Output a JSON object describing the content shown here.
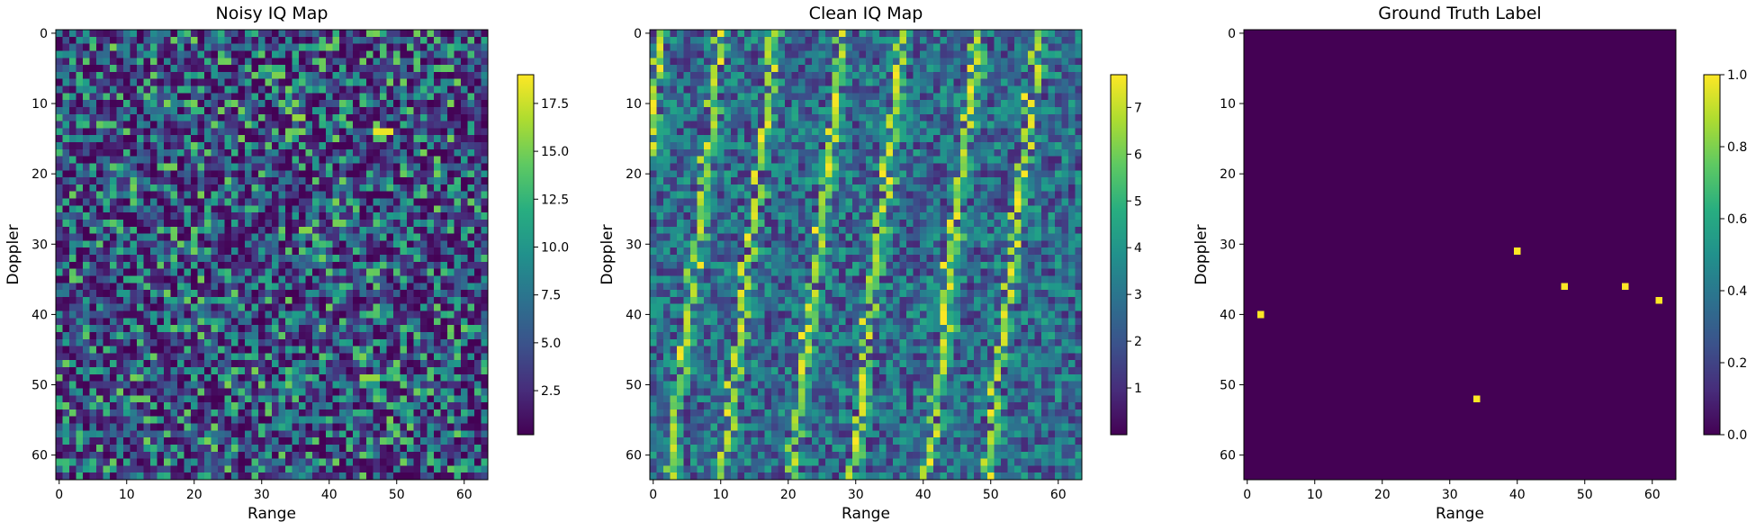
{
  "chart_data": [
    {
      "type": "heatmap",
      "title": "Noisy IQ Map",
      "xlabel": "Range",
      "ylabel": "Doppler",
      "rows": 64,
      "cols": 64,
      "xticks": [
        0,
        10,
        20,
        30,
        40,
        50,
        60
      ],
      "yticks": [
        0,
        10,
        20,
        30,
        40,
        50,
        60
      ],
      "colormap": "viridis",
      "colorbar": {
        "min": 0.2,
        "max": 19.0,
        "ticks": [
          2.5,
          5.0,
          7.5,
          10.0,
          12.5,
          15.0,
          17.5
        ],
        "tick_labels": [
          "2.5",
          "5.0",
          "7.5",
          "10.0",
          "12.5",
          "15.0",
          "17.5"
        ]
      },
      "pattern": "noise",
      "hot_spots": [
        {
          "row": 14,
          "col": 47,
          "span": 3,
          "value": 18.5
        },
        {
          "row": 49,
          "col": 45,
          "span": 3,
          "value": 16.0
        },
        {
          "row": 12,
          "col": 35,
          "span": 2,
          "value": 16.0
        },
        {
          "row": 28,
          "col": 36,
          "span": 2,
          "value": 15.5
        },
        {
          "row": 19,
          "col": 16,
          "span": 2,
          "value": 15.0
        },
        {
          "row": 52,
          "col": 11,
          "span": 3,
          "value": 14.5
        },
        {
          "row": 27,
          "col": 41,
          "span": 2,
          "value": 15.0
        }
      ]
    },
    {
      "type": "heatmap",
      "title": "Clean IQ Map",
      "xlabel": "Range",
      "ylabel": "Doppler",
      "rows": 64,
      "cols": 64,
      "xticks": [
        0,
        10,
        20,
        30,
        40,
        50,
        60
      ],
      "yticks": [
        0,
        10,
        20,
        30,
        40,
        50,
        60
      ],
      "colormap": "viridis",
      "colorbar": {
        "min": 0.0,
        "max": 7.7,
        "ticks": [
          1,
          2,
          3,
          4,
          5,
          6,
          7
        ],
        "tick_labels": [
          "1",
          "2",
          "3",
          "4",
          "5",
          "6",
          "7"
        ]
      },
      "pattern": "diagonal-stripes",
      "stripe_tops": [
        1,
        10,
        18,
        28,
        37,
        48,
        57
      ]
    },
    {
      "type": "heatmap",
      "title": "Ground Truth Label",
      "xlabel": "Range",
      "ylabel": "Doppler",
      "rows": 64,
      "cols": 64,
      "xticks": [
        0,
        10,
        20,
        30,
        40,
        50,
        60
      ],
      "yticks": [
        0,
        10,
        20,
        30,
        40,
        50,
        60
      ],
      "colormap": "viridis",
      "colorbar": {
        "min": 0.0,
        "max": 1.0,
        "ticks": [
          0.0,
          0.2,
          0.4,
          0.6,
          0.8,
          1.0
        ],
        "tick_labels": [
          "0.0",
          "0.2",
          "0.4",
          "0.6",
          "0.8",
          "1.0"
        ]
      },
      "pattern": "points",
      "points": [
        {
          "col": 2,
          "row": 40
        },
        {
          "col": 34,
          "row": 52
        },
        {
          "col": 40,
          "row": 31
        },
        {
          "col": 47,
          "row": 36
        },
        {
          "col": 56,
          "row": 36
        },
        {
          "col": 61,
          "row": 38
        }
      ]
    }
  ]
}
